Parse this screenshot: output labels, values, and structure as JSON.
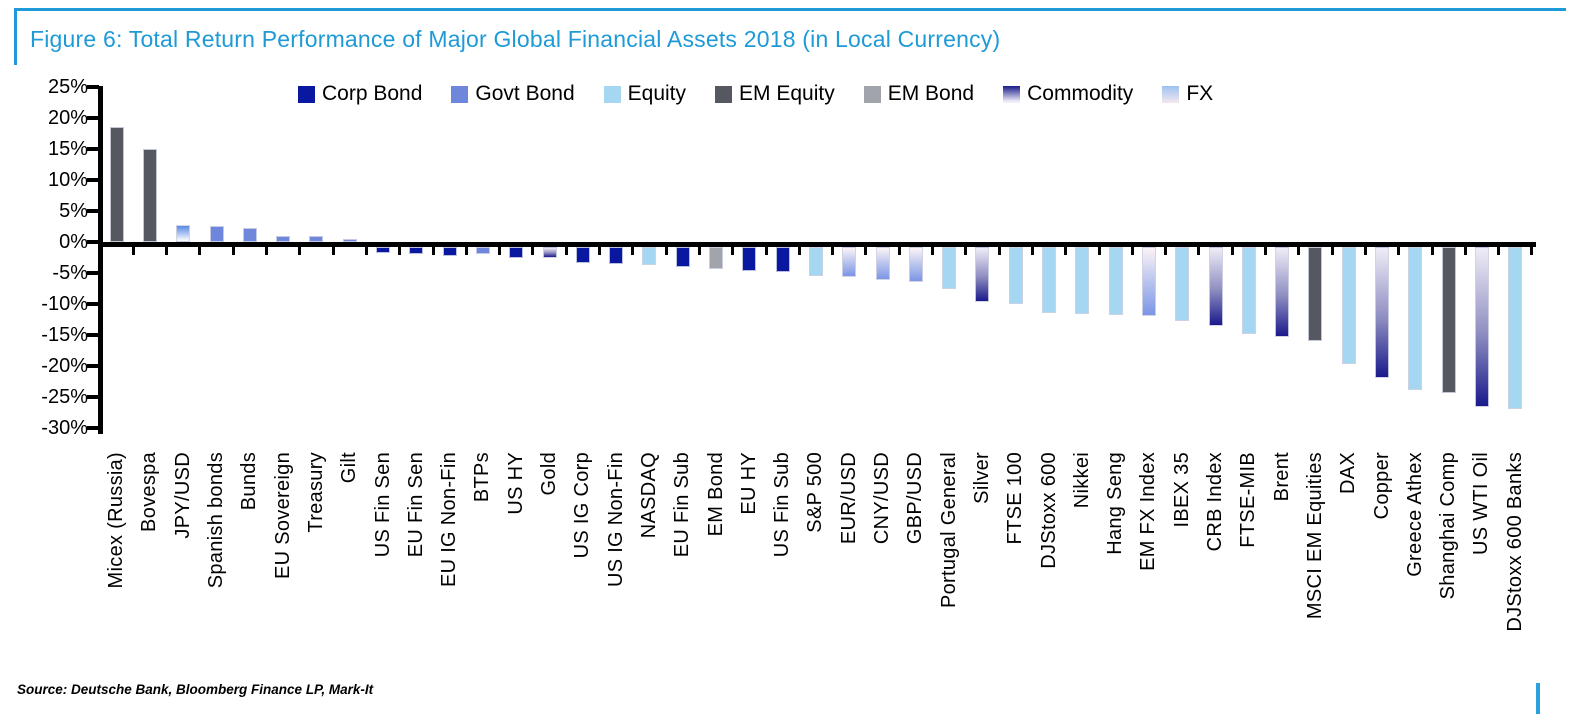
{
  "figure": {
    "title": "Figure 6: Total Return Performance of Major Global Financial Assets 2018 (in Local Currency)",
    "source": "Source: Deutsche Bank, Bloomberg Finance LP, Mark-It",
    "title_color": "#1E9AD6",
    "rule_color": "#1E9AD6",
    "corner_decor_color": "#2AA0DC"
  },
  "colors": {
    "corp_bond": "#0A17A0",
    "govt_bond": "#6E86DB",
    "equity": "#A5D7F2",
    "em_equity": "#565861",
    "em_bond": "#A2A4AB",
    "commodity_dark": "#1A1A8C",
    "commodity_mid": "#8D8CC0",
    "commodity_light": "#EFEDF7",
    "fx_dark": "#7C95E5",
    "fx_mid": "#B9C4EE",
    "fx_light": "#FDF3F7",
    "fx_positive_dark": "#5B89E4",
    "fx_legend_top": "#9CC2F0",
    "fx_legend_bottom": "#F6E7EF",
    "axis": "#000000"
  },
  "legend": [
    {
      "label": "Corp Bond",
      "group": "corp_bond"
    },
    {
      "label": "Govt Bond",
      "group": "govt_bond"
    },
    {
      "label": "Equity",
      "group": "equity"
    },
    {
      "label": "EM Equity",
      "group": "em_equity"
    },
    {
      "label": "EM Bond",
      "group": "em_bond"
    },
    {
      "label": "Commodity",
      "group": "commodity"
    },
    {
      "label": "FX",
      "group": "fx"
    }
  ],
  "chart_data": {
    "type": "bar",
    "title": "Total Return Performance of Major Global Financial Assets 2018 (in Local Currency)",
    "xlabel": "",
    "ylabel": "",
    "ylim": [
      -30,
      25
    ],
    "ytick_step": 5,
    "ytick_labels": [
      "25%",
      "20%",
      "15%",
      "10%",
      "5%",
      "0%",
      "-5%",
      "-10%",
      "-15%",
      "-20%",
      "-25%",
      "-30%"
    ],
    "grid": false,
    "legend_position": "top",
    "categories": [
      "Micex (Russia)",
      "Bovespa",
      "JPY/USD",
      "Spanish bonds",
      "Bunds",
      "EU Sovereign",
      "Treasury",
      "Gilt",
      "US Fin Sen",
      "EU Fin Sen",
      "EU IG Non-Fin",
      "BTPs",
      "US HY",
      "Gold",
      "US IG Corp",
      "US IG Non-Fin",
      "NASDAQ",
      "EU Fin Sub",
      "EM Bond",
      "EU HY",
      "US Fin Sub",
      "S&P 500",
      "EUR/USD",
      "CNY/USD",
      "GBP/USD",
      "Portugal General",
      "Silver",
      "FTSE 100",
      "DJStoxx 600",
      "Nikkei",
      "Hang Seng",
      "EM FX Index",
      "IBEX 35",
      "CRB Index",
      "FTSE-MIB",
      "Brent",
      "MSCI EM Equities",
      "DAX",
      "Copper",
      "Greece Athex",
      "Shanghai Comp",
      "US WTI Oil",
      "DJStoxx 600 Banks"
    ],
    "values": [
      18.6,
      15.0,
      2.8,
      2.5,
      2.3,
      1.0,
      0.9,
      0.5,
      -0.9,
      -1.2,
      -1.4,
      -1.2,
      -1.8,
      -1.7,
      -2.5,
      -2.8,
      -2.9,
      -3.3,
      -3.6,
      -3.9,
      -4.1,
      -4.7,
      -4.9,
      -5.4,
      -5.6,
      -6.8,
      -8.8,
      -9.2,
      -10.6,
      -10.8,
      -11.0,
      -11.2,
      -11.9,
      -12.8,
      -14.0,
      -14.5,
      -15.1,
      -18.9,
      -21.2,
      -23.1,
      -23.6,
      -25.8,
      -26.2
    ],
    "groups": [
      "em_equity",
      "em_equity",
      "fx",
      "govt_bond",
      "govt_bond",
      "govt_bond",
      "govt_bond",
      "govt_bond",
      "corp_bond",
      "corp_bond",
      "corp_bond",
      "govt_bond",
      "corp_bond",
      "commodity",
      "corp_bond",
      "corp_bond",
      "equity",
      "corp_bond",
      "em_bond",
      "corp_bond",
      "corp_bond",
      "equity",
      "fx",
      "fx",
      "fx",
      "equity",
      "commodity",
      "equity",
      "equity",
      "equity",
      "equity",
      "fx",
      "equity",
      "commodity",
      "equity",
      "commodity",
      "em_equity",
      "equity",
      "commodity",
      "equity",
      "em_equity",
      "commodity",
      "equity"
    ]
  }
}
